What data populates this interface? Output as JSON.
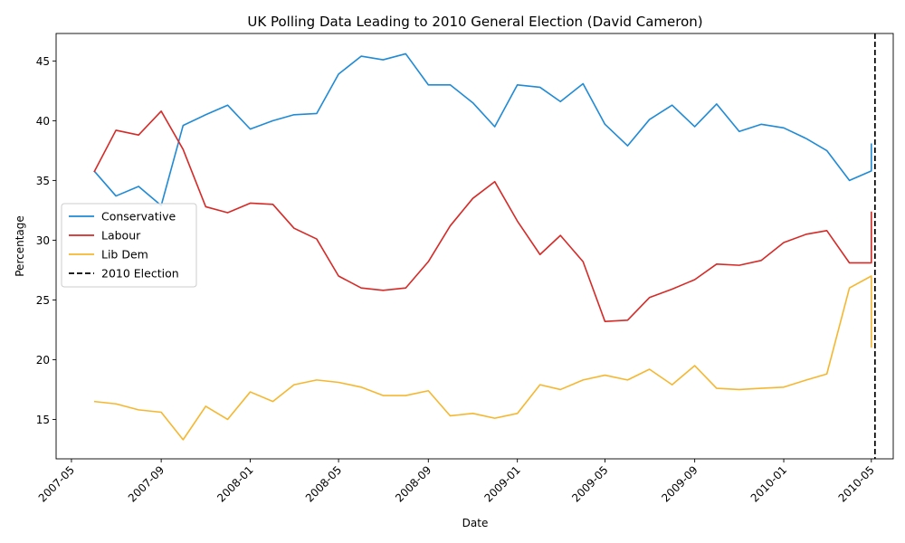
{
  "chart_data": {
    "type": "line",
    "title": "UK Polling Data Leading to 2010 General Election (David Cameron)",
    "xlabel": "Date",
    "ylabel": "Percentage",
    "x_range": [
      "2007-04-10",
      "2010-05-31"
    ],
    "ylim": [
      11.7,
      47.3
    ],
    "x_ticks": [
      "2007-05",
      "2007-09",
      "2008-01",
      "2008-05",
      "2008-09",
      "2009-01",
      "2009-05",
      "2009-09",
      "2010-01",
      "2010-05"
    ],
    "y_ticks": [
      15,
      20,
      25,
      30,
      35,
      40,
      45
    ],
    "grid": false,
    "legend_position": "center-left",
    "x": [
      "2007-06-01",
      "2007-07-01",
      "2007-08-01",
      "2007-09-01",
      "2007-10-01",
      "2007-11-01",
      "2007-12-01",
      "2008-01-01",
      "2008-02-01",
      "2008-03-01",
      "2008-04-01",
      "2008-05-01",
      "2008-06-01",
      "2008-07-01",
      "2008-08-01",
      "2008-09-01",
      "2008-10-01",
      "2008-11-01",
      "2008-12-01",
      "2009-01-01",
      "2009-02-01",
      "2009-03-01",
      "2009-04-01",
      "2009-05-01",
      "2009-06-01",
      "2009-07-01",
      "2009-08-01",
      "2009-09-01",
      "2009-10-01",
      "2009-11-01",
      "2009-12-01",
      "2010-01-01",
      "2010-02-01",
      "2010-03-01",
      "2010-04-01",
      "2010-05-01",
      "2010-05-01"
    ],
    "series": [
      {
        "name": "Conservative",
        "color": "#1f8ad6",
        "values": [
          35.8,
          33.7,
          34.5,
          32.9,
          39.6,
          40.5,
          41.3,
          39.3,
          40.0,
          40.5,
          40.6,
          43.9,
          45.4,
          45.1,
          45.6,
          43.0,
          43.0,
          41.5,
          39.5,
          43.0,
          42.8,
          41.6,
          43.1,
          39.7,
          37.9,
          40.1,
          41.3,
          39.5,
          41.4,
          39.1,
          39.7,
          39.4,
          38.5,
          37.5,
          35.0,
          35.8,
          38.1
        ]
      },
      {
        "name": "Labour",
        "color": "#d62a27",
        "values": [
          35.7,
          39.2,
          38.8,
          40.8,
          37.6,
          32.8,
          32.3,
          33.1,
          33.0,
          31.0,
          30.1,
          27.0,
          26.0,
          25.8,
          26.0,
          28.2,
          31.2,
          33.5,
          34.9,
          31.6,
          28.8,
          30.4,
          28.2,
          23.2,
          23.3,
          25.2,
          25.9,
          26.7,
          28.0,
          27.9,
          28.3,
          29.8,
          30.5,
          30.8,
          28.1,
          28.1,
          32.4
        ]
      },
      {
        "name": "Lib Dem",
        "color": "#f5b730",
        "values": [
          16.5,
          16.3,
          15.8,
          15.6,
          13.3,
          16.1,
          15.0,
          17.3,
          16.5,
          17.9,
          18.3,
          18.1,
          17.7,
          17.0,
          17.0,
          17.4,
          15.3,
          15.5,
          15.1,
          15.5,
          17.9,
          17.5,
          18.3,
          18.7,
          18.3,
          19.2,
          17.9,
          19.5,
          17.6,
          17.5,
          17.6,
          17.7,
          18.3,
          18.8,
          26.0,
          27.0,
          21.0
        ]
      }
    ],
    "annotations": [
      {
        "type": "vline",
        "x": "2010-05-06",
        "label": "2010 Election",
        "color": "#000000",
        "style": "dashed"
      }
    ]
  }
}
